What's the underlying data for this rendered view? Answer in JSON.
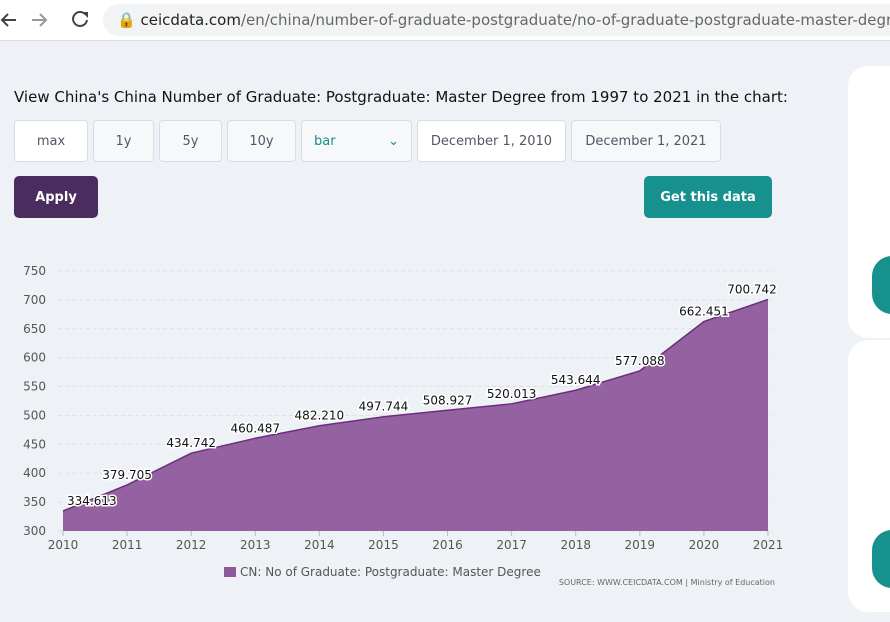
{
  "browser": {
    "url_host": "ceicdata.com",
    "url_path": "/en/china/number-of-graduate-postgraduate/no-of-graduate-postgraduate-master-degree"
  },
  "heading": "View China's China Number of Graduate: Postgraduate: Master Degree from 1997 to 2021 in the chart:",
  "controls": {
    "ranges": [
      "max",
      "1y",
      "5y",
      "10y"
    ],
    "chart_type": "bar",
    "start_date": "December 1, 2010",
    "end_date": "December 1, 2021",
    "apply": "Apply",
    "get_data": "Get this data"
  },
  "chart_data": {
    "type": "area",
    "x": [
      2010,
      2011,
      2012,
      2013,
      2014,
      2015,
      2016,
      2017,
      2018,
      2019,
      2020,
      2021
    ],
    "series": [
      {
        "name": "CN: No of Graduate: Postgraduate: Master Degree",
        "color": "#8f5a9c",
        "values": [
          334.613,
          379.705,
          434.742,
          460.487,
          482.21,
          497.744,
          508.927,
          520.013,
          543.644,
          577.088,
          662.451,
          700.742
        ],
        "value_labels": [
          "334.613",
          "379.705",
          "434.742",
          "460.487",
          "482.210",
          "497.744",
          "508.927",
          "520.013",
          "543.644",
          "577.088",
          "662.451",
          "700.742"
        ]
      }
    ],
    "xlim": [
      2010,
      2021
    ],
    "xticks": [
      2010,
      2011,
      2012,
      2013,
      2014,
      2015,
      2016,
      2017,
      2018,
      2019,
      2020,
      2021
    ],
    "ylim": [
      300,
      750
    ],
    "yticks": [
      300,
      350,
      400,
      450,
      500,
      550,
      600,
      650,
      700,
      750
    ],
    "grid": true,
    "source": "SOURCE: WWW.CEICDATA.COM | Ministry of Education"
  }
}
